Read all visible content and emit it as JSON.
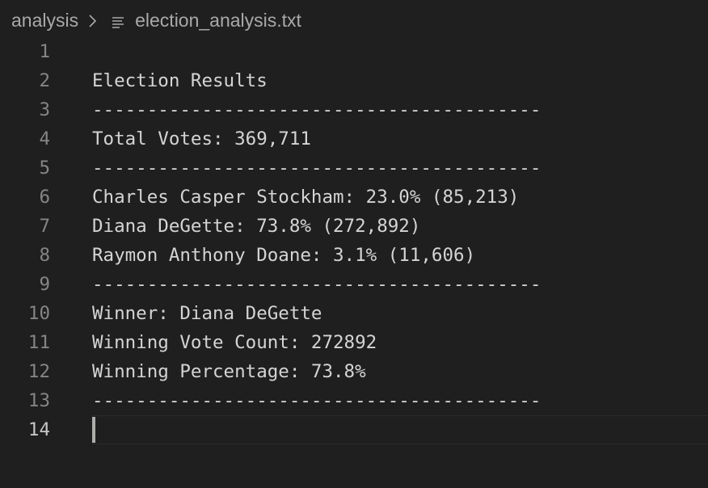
{
  "breadcrumb": {
    "folder": "analysis",
    "separator_icon": "chevron-right-icon",
    "file_icon": "text-file-icon",
    "file": "election_analysis.txt"
  },
  "colors": {
    "background": "#1f1f1f",
    "text": "#d4d4d4",
    "line_number": "#858585",
    "breadcrumb": "#a9a9a9",
    "cursor": "#aeafad"
  },
  "editor": {
    "current_line": 14,
    "lines": [
      {
        "num": "1",
        "text": ""
      },
      {
        "num": "2",
        "text": "Election Results"
      },
      {
        "num": "3",
        "text": "-----------------------------------------"
      },
      {
        "num": "4",
        "text": "Total Votes: 369,711"
      },
      {
        "num": "5",
        "text": "-----------------------------------------"
      },
      {
        "num": "6",
        "text": "Charles Casper Stockham: 23.0% (85,213)"
      },
      {
        "num": "7",
        "text": "Diana DeGette: 73.8% (272,892)"
      },
      {
        "num": "8",
        "text": "Raymon Anthony Doane: 3.1% (11,606)"
      },
      {
        "num": "9",
        "text": "-----------------------------------------"
      },
      {
        "num": "10",
        "text": "Winner: Diana DeGette"
      },
      {
        "num": "11",
        "text": "Winning Vote Count: 272892"
      },
      {
        "num": "12",
        "text": "Winning Percentage: 73.8%"
      },
      {
        "num": "13",
        "text": "-----------------------------------------"
      },
      {
        "num": "14",
        "text": ""
      }
    ]
  }
}
